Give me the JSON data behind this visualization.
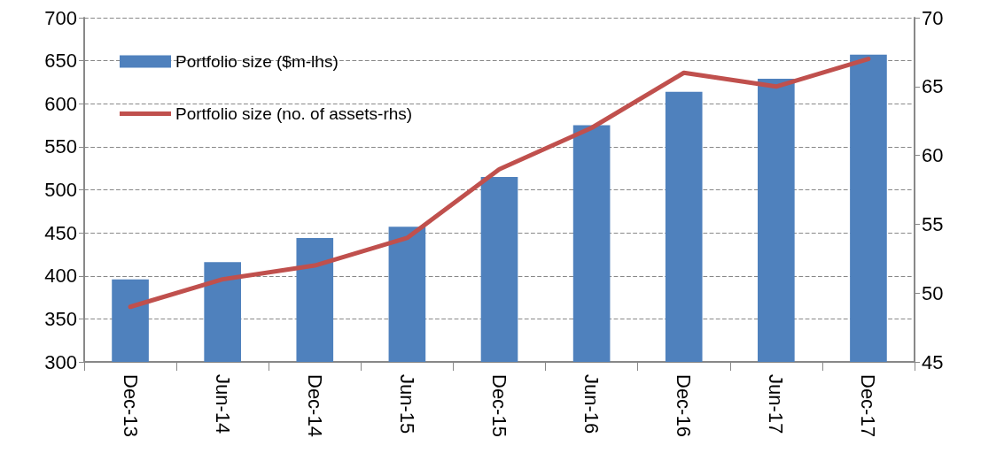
{
  "chart_data": {
    "type": "bar",
    "categories": [
      "Dec-13",
      "Jun-14",
      "Dec-14",
      "Jun-15",
      "Dec-15",
      "Jun-16",
      "Dec-16",
      "Jun-17",
      "Dec-17"
    ],
    "series": [
      {
        "name": "Portfolio size ($m-lhs)",
        "color": "#4f81bd",
        "values": [
          396,
          416,
          444,
          457,
          515,
          575,
          614,
          629,
          657
        ]
      },
      {
        "name": "Portfolio size (no. of assets-rhs)",
        "type": "line",
        "axis": "y2",
        "color": "#c0504d",
        "values": [
          49,
          51,
          52,
          54,
          59,
          62,
          66,
          65,
          67
        ]
      }
    ],
    "ylim": [
      300,
      700
    ],
    "yticks": [
      300,
      350,
      400,
      450,
      500,
      550,
      600,
      650,
      700
    ],
    "y2lim": [
      45,
      70
    ],
    "y2ticks": [
      45,
      50,
      55,
      60,
      65,
      70
    ],
    "grid": "y",
    "legend": "top left",
    "marker": "none",
    "line_style": "solid"
  }
}
